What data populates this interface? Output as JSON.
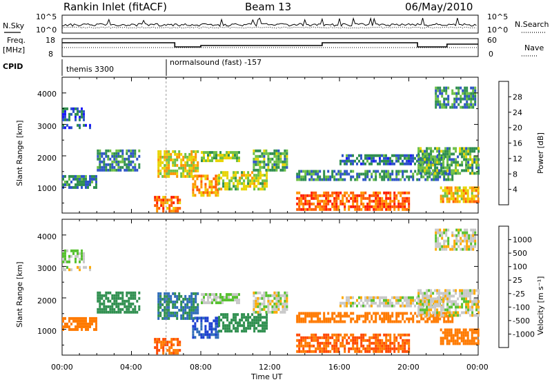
{
  "header": {
    "title": "Rankin Inlet (fitACF)",
    "beam": "Beam 13",
    "date": "06/May/2010"
  },
  "panels": {
    "nsky_label": "N.Sky",
    "nsearch_label": "N.Search",
    "freq_label_1": "Freq.",
    "freq_label_2": "[MHz]",
    "nave_label": "Nave",
    "cpid_label": "CPID",
    "nsky_ticks": [
      "10^5",
      "10^0"
    ],
    "nsearch_ticks": [
      "10^5",
      "10^0"
    ],
    "freq_ticks": [
      "18",
      "8"
    ],
    "nave_ticks": [
      "60",
      "0"
    ],
    "cpid_modes": [
      {
        "label": "themis 3300",
        "start_hour": 0
      },
      {
        "label": "normalsound (fast) -157",
        "start_hour": 6
      }
    ]
  },
  "axes": {
    "x_ticks": [
      "00:00",
      "04:00",
      "08:00",
      "12:00",
      "16:00",
      "20:00",
      "00:00"
    ],
    "x_label": "Time UT",
    "y_label": "Slant Range [km]",
    "y_ticks": [
      "1000",
      "2000",
      "3000",
      "4000"
    ]
  },
  "colorbars": {
    "power": {
      "label": "Power [dB]",
      "ticks": [
        "4",
        "8",
        "12",
        "16",
        "20",
        "24",
        "28"
      ],
      "colors": [
        "#1c1cf5",
        "#2e54c8",
        "#2f8f4f",
        "#6ec046",
        "#e8d400",
        "#ff9500",
        "#ff5a00",
        "#ff1a00"
      ]
    },
    "velocity": {
      "label": "Velocity [m s⁻¹]",
      "ticks": [
        "1000",
        "500",
        "100",
        "25",
        "-25",
        "-100",
        "-500",
        "-1000"
      ],
      "colors": [
        "#1c3fd0",
        "#2f6cb8",
        "#2f8f4f",
        "#57c130",
        "#c8c8c8",
        "#ffaa00",
        "#ff7a00",
        "#ff4800",
        "#ff1a00"
      ]
    }
  },
  "chart_data": {
    "type": "heatmap",
    "x_range_hours": [
      0,
      24
    ],
    "y_range_km": [
      180,
      4500
    ],
    "regions": [
      {
        "t0": 0.0,
        "t1": 2.0,
        "r0": 950,
        "r1": 1350,
        "power": 9,
        "velocity": -200
      },
      {
        "t0": 0.0,
        "t1": 1.2,
        "r0": 3100,
        "r1": 3500,
        "power": 6,
        "velocity": 25
      },
      {
        "t0": 0.0,
        "t1": 1.6,
        "r0": 2850,
        "r1": 3000,
        "power": 6,
        "velocity": 0
      },
      {
        "t0": 2.0,
        "t1": 4.5,
        "r0": 1500,
        "r1": 2200,
        "power": 9,
        "velocity": 100
      },
      {
        "t0": 5.3,
        "t1": 6.8,
        "r0": 200,
        "r1": 700,
        "power": 24,
        "velocity": -300
      },
      {
        "t0": 5.5,
        "t1": 7.8,
        "r0": 1300,
        "r1": 2100,
        "power": 18,
        "velocity": 300
      },
      {
        "t0": 7.5,
        "t1": 9.0,
        "r0": 700,
        "r1": 1400,
        "power": 22,
        "velocity": 800
      },
      {
        "t0": 8.0,
        "t1": 10.2,
        "r0": 1800,
        "r1": 2100,
        "power": 14,
        "velocity": 25
      },
      {
        "t0": 9.0,
        "t1": 11.8,
        "r0": 900,
        "r1": 1500,
        "power": 16,
        "velocity": 100
      },
      {
        "t0": 11.0,
        "t1": 13.0,
        "r0": 1500,
        "r1": 2200,
        "power": 12,
        "velocity": 0
      },
      {
        "t0": 13.5,
        "t1": 20.0,
        "r0": 250,
        "r1": 800,
        "power": 26,
        "velocity": -300
      },
      {
        "t0": 13.5,
        "t1": 22.5,
        "r0": 1200,
        "r1": 1500,
        "power": 10,
        "velocity": -100
      },
      {
        "t0": 16.0,
        "t1": 22.0,
        "r0": 1700,
        "r1": 2000,
        "power": 8,
        "velocity": 0
      },
      {
        "t0": 20.5,
        "t1": 24.0,
        "r0": 1400,
        "r1": 2200,
        "power": 12,
        "velocity": 0
      },
      {
        "t0": 21.8,
        "t1": 24.0,
        "r0": 500,
        "r1": 1000,
        "power": 20,
        "velocity": -200
      },
      {
        "t0": 21.5,
        "t1": 23.8,
        "r0": 3500,
        "r1": 4200,
        "power": 10,
        "velocity": 0
      }
    ]
  }
}
